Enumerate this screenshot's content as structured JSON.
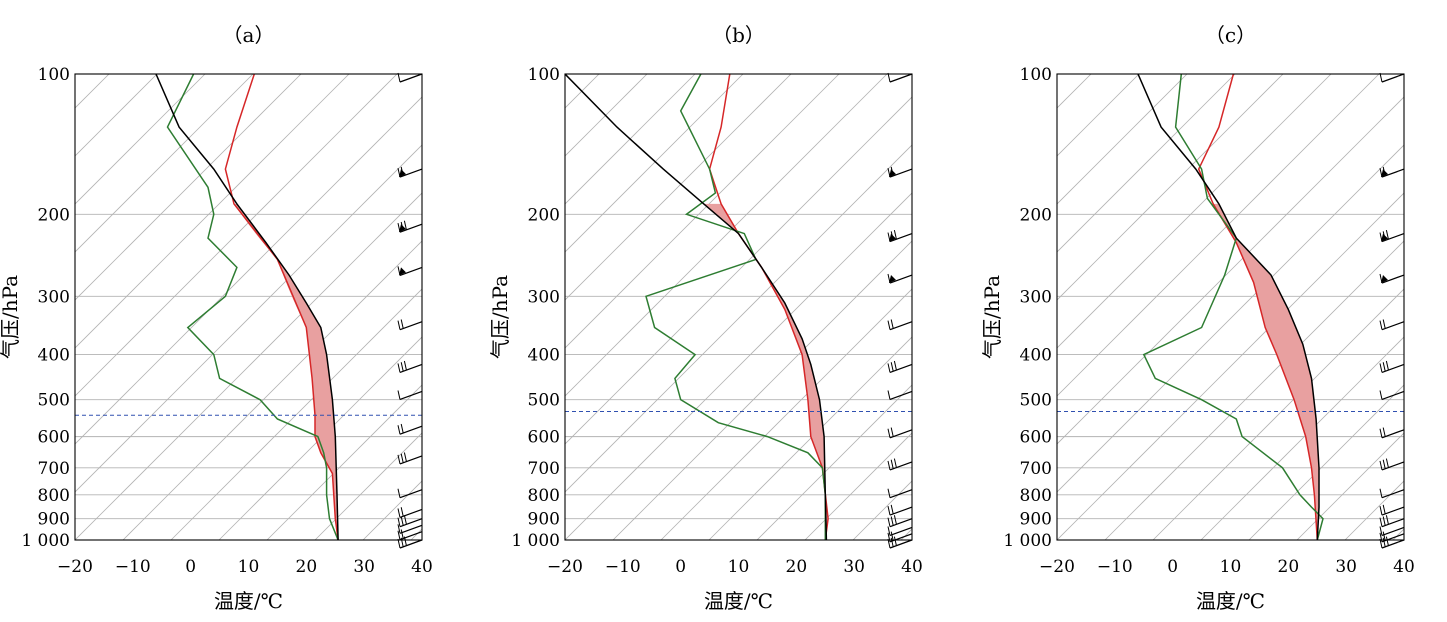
{
  "chart_data": [
    {
      "type": "line",
      "panel_label": "（a）",
      "xlabel": "温度/℃",
      "ylabel": "气压/hPa",
      "x_ticks": [
        -20,
        -10,
        0,
        10,
        20,
        30,
        40
      ],
      "y_ticks": [
        100,
        200,
        300,
        400,
        500,
        600,
        700,
        800,
        900,
        1000
      ],
      "y_tick_labels": [
        "100",
        "200",
        "300",
        "400",
        "500",
        "600",
        "700",
        "800",
        "900",
        "1 000"
      ],
      "xlim": [
        -20,
        40
      ],
      "ylim": [
        1000,
        100
      ],
      "y_scale": "log",
      "marker_line_pressure": 540,
      "wind_levels": [
        100,
        160,
        210,
        260,
        340,
        420,
        480,
        570,
        660,
        780,
        860,
        900,
        930,
        960,
        1000
      ],
      "series": [
        {
          "color": "#d62728",
          "points": [
            [
              11,
              100
            ],
            [
              8,
              130
            ],
            [
              6,
              160
            ],
            [
              7.5,
              190
            ],
            [
              15,
              250
            ],
            [
              20,
              350
            ],
            [
              21,
              450
            ],
            [
              21.5,
              540
            ],
            [
              21.5,
              600
            ],
            [
              22.5,
              650
            ],
            [
              24.5,
              720
            ],
            [
              25,
              900
            ],
            [
              25.5,
              1000
            ]
          ]
        },
        {
          "color": "#2e7d32",
          "points": [
            [
              0.5,
              100
            ],
            [
              -4,
              130
            ],
            [
              3,
              175
            ],
            [
              4,
              200
            ],
            [
              3,
              225
            ],
            [
              8,
              260
            ],
            [
              6,
              300
            ],
            [
              -0.5,
              350
            ],
            [
              4,
              400
            ],
            [
              5,
              450
            ],
            [
              12,
              500
            ],
            [
              15,
              550
            ],
            [
              22,
              600
            ],
            [
              23,
              650
            ],
            [
              23.5,
              700
            ],
            [
              23.5,
              800
            ],
            [
              24,
              900
            ],
            [
              25.5,
              1000
            ]
          ]
        },
        {
          "color": "#000000",
          "points": [
            [
              -6,
              100
            ],
            [
              -2,
              130
            ],
            [
              4,
              160
            ],
            [
              8,
              190
            ],
            [
              13,
              230
            ],
            [
              17,
              270
            ],
            [
              20,
              310
            ],
            [
              22.5,
              350
            ],
            [
              23.5,
              400
            ],
            [
              24.5,
              500
            ],
            [
              25,
              600
            ],
            [
              25.3,
              800
            ],
            [
              25.5,
              1000
            ]
          ]
        }
      ]
    },
    {
      "type": "line",
      "panel_label": "（b）",
      "xlabel": "温度/℃",
      "ylabel": "气压/hPa",
      "x_ticks": [
        -20,
        -10,
        0,
        10,
        20,
        30,
        40
      ],
      "y_ticks": [
        100,
        200,
        300,
        400,
        500,
        600,
        700,
        800,
        900,
        1000
      ],
      "y_tick_labels": [
        "100",
        "200",
        "300",
        "400",
        "500",
        "600",
        "700",
        "800",
        "900",
        "1 000"
      ],
      "xlim": [
        -20,
        40
      ],
      "ylim": [
        1000,
        100
      ],
      "y_scale": "log",
      "marker_line_pressure": 530,
      "wind_levels": [
        100,
        160,
        220,
        270,
        340,
        420,
        480,
        580,
        680,
        780,
        850,
        900,
        940,
        970,
        1000
      ],
      "series": [
        {
          "color": "#d62728",
          "points": [
            [
              8.5,
              100
            ],
            [
              7,
              130
            ],
            [
              5,
              160
            ],
            [
              7,
              190
            ],
            [
              10,
              220
            ],
            [
              14,
              260
            ],
            [
              18,
              320
            ],
            [
              21,
              400
            ],
            [
              22,
              500
            ],
            [
              22.5,
              600
            ],
            [
              24.5,
              700
            ],
            [
              25.5,
              900
            ],
            [
              25,
              1000
            ]
          ]
        },
        {
          "color": "#2e7d32",
          "points": [
            [
              3.5,
              100
            ],
            [
              0,
              120
            ],
            [
              5,
              160
            ],
            [
              6,
              180
            ],
            [
              1,
              200
            ],
            [
              11,
              220
            ],
            [
              13,
              250
            ],
            [
              -6,
              300
            ],
            [
              -4.5,
              350
            ],
            [
              2.5,
              400
            ],
            [
              -1,
              450
            ],
            [
              0,
              500
            ],
            [
              6.5,
              560
            ],
            [
              15,
              600
            ],
            [
              22,
              650
            ],
            [
              24.5,
              700
            ],
            [
              25,
              800
            ],
            [
              25,
              1000
            ]
          ]
        },
        {
          "color": "#000000",
          "points": [
            [
              -20,
              100
            ],
            [
              -11,
              130
            ],
            [
              -3,
              160
            ],
            [
              4,
              190
            ],
            [
              10,
              220
            ],
            [
              14,
              260
            ],
            [
              18,
              310
            ],
            [
              21,
              370
            ],
            [
              22.5,
              420
            ],
            [
              24,
              500
            ],
            [
              24.8,
              600
            ],
            [
              25,
              800
            ],
            [
              25.2,
              1000
            ]
          ]
        }
      ]
    },
    {
      "type": "line",
      "panel_label": "（c）",
      "xlabel": "温度/℃",
      "ylabel": "气压/hPa",
      "x_ticks": [
        -20,
        -10,
        0,
        10,
        20,
        30,
        40
      ],
      "y_ticks": [
        100,
        200,
        300,
        400,
        500,
        600,
        700,
        800,
        900,
        1000
      ],
      "y_tick_labels": [
        "100",
        "200",
        "300",
        "400",
        "500",
        "600",
        "700",
        "800",
        "900",
        "1 000"
      ],
      "xlim": [
        -20,
        40
      ],
      "ylim": [
        1000,
        100
      ],
      "y_scale": "log",
      "marker_line_pressure": 530,
      "wind_levels": [
        100,
        160,
        220,
        270,
        340,
        420,
        480,
        580,
        680,
        780,
        850,
        900,
        940,
        970,
        1000
      ],
      "series": [
        {
          "color": "#d62728",
          "points": [
            [
              10.5,
              100
            ],
            [
              8,
              130
            ],
            [
              4.5,
              160
            ],
            [
              7,
              190
            ],
            [
              11,
              230
            ],
            [
              14,
              280
            ],
            [
              16,
              350
            ],
            [
              18,
              400
            ],
            [
              21,
              500
            ],
            [
              23,
              600
            ],
            [
              24,
              700
            ],
            [
              24.5,
              800
            ],
            [
              25,
              1000
            ]
          ]
        },
        {
          "color": "#2e7d32",
          "points": [
            [
              1.5,
              100
            ],
            [
              0.5,
              130
            ],
            [
              5,
              160
            ],
            [
              6,
              185
            ],
            [
              11,
              225
            ],
            [
              9,
              270
            ],
            [
              5,
              350
            ],
            [
              -5,
              400
            ],
            [
              -3,
              450
            ],
            [
              5,
              500
            ],
            [
              11,
              550
            ],
            [
              12,
              600
            ],
            [
              19,
              700
            ],
            [
              22,
              800
            ],
            [
              24,
              850
            ],
            [
              26,
              900
            ],
            [
              25,
              1000
            ]
          ]
        },
        {
          "color": "#000000",
          "points": [
            [
              -6,
              100
            ],
            [
              -2,
              130
            ],
            [
              4,
              160
            ],
            [
              8,
              190
            ],
            [
              11,
              225
            ],
            [
              17,
              270
            ],
            [
              20,
              320
            ],
            [
              22.5,
              380
            ],
            [
              24,
              450
            ],
            [
              24.8,
              550
            ],
            [
              25.3,
              700
            ],
            [
              25.3,
              850
            ],
            [
              25,
              1000
            ]
          ]
        }
      ]
    }
  ]
}
